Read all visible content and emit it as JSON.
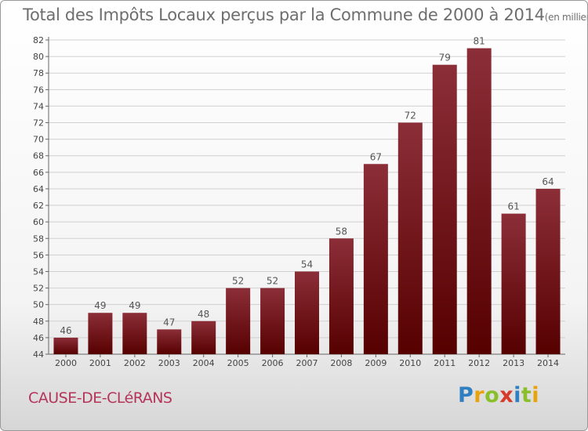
{
  "title": "Total des Impôts Locaux perçus par la Commune de 2000 à 2014",
  "title_unit": "(en milliers d'€)",
  "commune": "CAUSE-DE-CLéRANS",
  "logo": {
    "letters": [
      "P",
      "r",
      "o",
      "x",
      "i",
      "t",
      "i"
    ],
    "colors": [
      "#2f7fc1",
      "#e8a20c",
      "#8bbf2a",
      "#d83a2a",
      "#2f7fc1",
      "#8bbf2a",
      "#e8a20c"
    ]
  },
  "colors": {
    "bar_top": "#8c2e38",
    "bar_bottom": "#560000",
    "grid": "#d0d0d0",
    "axis": "#666666"
  },
  "chart_data": {
    "type": "bar",
    "categories": [
      "2000",
      "2001",
      "2002",
      "2003",
      "2004",
      "2005",
      "2006",
      "2007",
      "2008",
      "2009",
      "2010",
      "2011",
      "2012",
      "2013",
      "2014"
    ],
    "values": [
      46,
      49,
      49,
      47,
      48,
      52,
      52,
      54,
      58,
      67,
      72,
      79,
      81,
      61,
      64
    ],
    "ylim": [
      44,
      82
    ],
    "yticks": [
      44,
      46,
      48,
      50,
      52,
      54,
      56,
      58,
      60,
      62,
      64,
      66,
      68,
      70,
      72,
      74,
      76,
      78,
      80,
      82
    ],
    "grid": true,
    "data_labels": true
  }
}
